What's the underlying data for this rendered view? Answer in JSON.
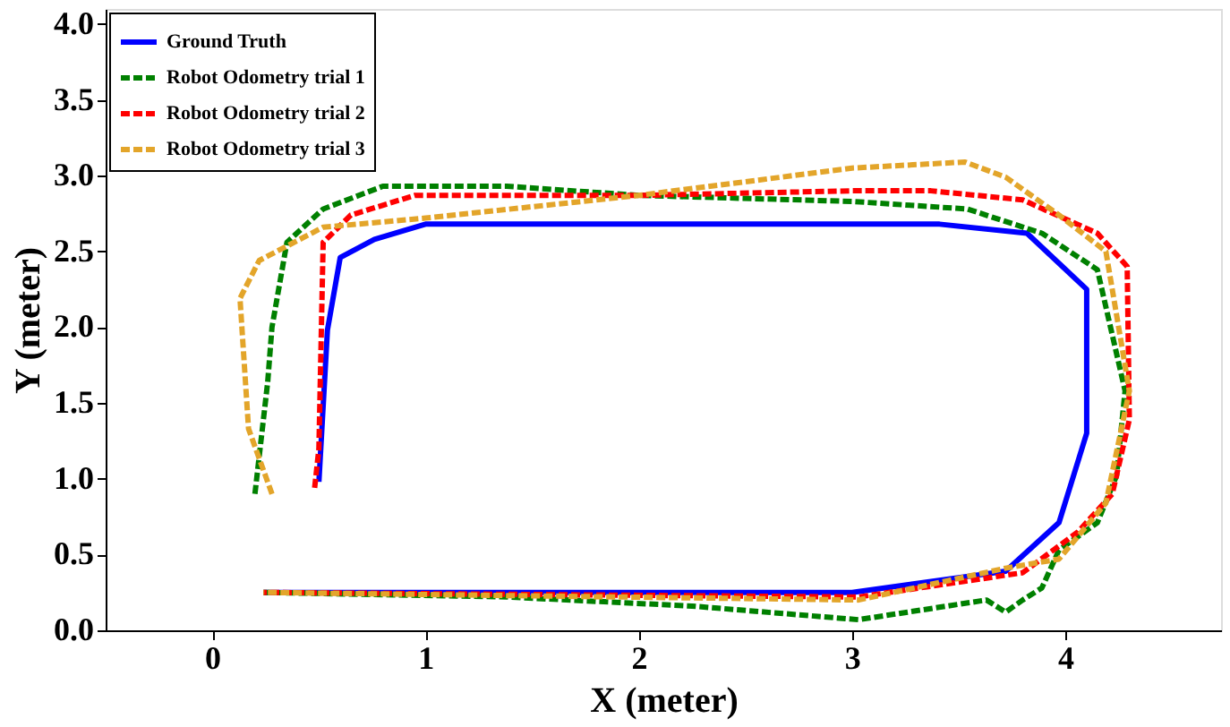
{
  "chart_data": {
    "type": "line",
    "xlabel": "X (meter)",
    "ylabel": "Y (meter)",
    "xlim": [
      -0.5,
      4.73
    ],
    "ylim": [
      0,
      4.1
    ],
    "xticks": [
      0,
      1,
      2,
      3,
      4
    ],
    "yticks": [
      {
        "value": 0,
        "label": "0.0"
      },
      {
        "value": 0.5,
        "label": "0.5"
      },
      {
        "value": 1,
        "label": "1.0"
      },
      {
        "value": 1.5,
        "label": "1.5"
      },
      {
        "value": 2,
        "label": "2.0"
      },
      {
        "value": 2.5,
        "label": "2.5"
      },
      {
        "value": 3,
        "label": "3.0"
      },
      {
        "value": 3.5,
        "label": "3.5"
      },
      {
        "value": 4,
        "label": "4.0"
      }
    ],
    "grid": false,
    "legend": "top left",
    "marker": "none",
    "series": [
      {
        "name": "Ground Truth",
        "color": "#0000ff",
        "line_style": "solid",
        "x": [
          0.5,
          0.54,
          0.6,
          0.76,
          1.0,
          3.41,
          3.82,
          4.1,
          4.1,
          3.97,
          3.72,
          3.0,
          0.24
        ],
        "values": [
          0.98,
          1.98,
          2.46,
          2.58,
          2.68,
          2.68,
          2.62,
          2.25,
          1.3,
          0.71,
          0.39,
          0.25,
          0.25
        ]
      },
      {
        "name": "Robot Odometry trial 1",
        "color": "#008000",
        "line_style": "dashed",
        "x": [
          0.2,
          0.26,
          0.28,
          0.35,
          0.52,
          0.8,
          1.38,
          2.0,
          3.0,
          3.54,
          3.89,
          4.15,
          4.28,
          4.24,
          4.15,
          3.97,
          3.89,
          3.8,
          3.72,
          3.63,
          3.03,
          2.25,
          1.38,
          0.24
        ],
        "values": [
          0.9,
          1.64,
          2.0,
          2.56,
          2.78,
          2.93,
          2.93,
          2.87,
          2.83,
          2.78,
          2.62,
          2.38,
          1.58,
          1.02,
          0.71,
          0.53,
          0.28,
          0.2,
          0.12,
          0.2,
          0.07,
          0.16,
          0.22,
          0.25
        ]
      },
      {
        "name": "Robot Odometry trial 2",
        "color": "#ff0000",
        "line_style": "dashed",
        "x": [
          0.48,
          0.5,
          0.52,
          0.65,
          0.95,
          2.0,
          3.0,
          3.37,
          3.8,
          4.15,
          4.29,
          4.3,
          4.22,
          4.06,
          3.8,
          3.03,
          0.24
        ],
        "values": [
          0.94,
          1.2,
          2.56,
          2.74,
          2.87,
          2.87,
          2.9,
          2.9,
          2.84,
          2.62,
          2.4,
          1.39,
          0.9,
          0.65,
          0.38,
          0.22,
          0.25
        ]
      },
      {
        "name": "Robot Odometry trial 3",
        "color": "#e3a52a",
        "line_style": "dashed",
        "x": [
          0.28,
          0.17,
          0.13,
          0.22,
          0.52,
          1.0,
          2.0,
          3.0,
          3.53,
          3.72,
          3.97,
          4.19,
          4.3,
          4.19,
          3.97,
          3.72,
          3.03,
          0.24
        ],
        "values": [
          0.9,
          1.33,
          2.19,
          2.44,
          2.66,
          2.72,
          2.87,
          3.05,
          3.09,
          2.99,
          2.74,
          2.5,
          1.58,
          0.84,
          0.47,
          0.41,
          0.2,
          0.25
        ]
      }
    ]
  }
}
